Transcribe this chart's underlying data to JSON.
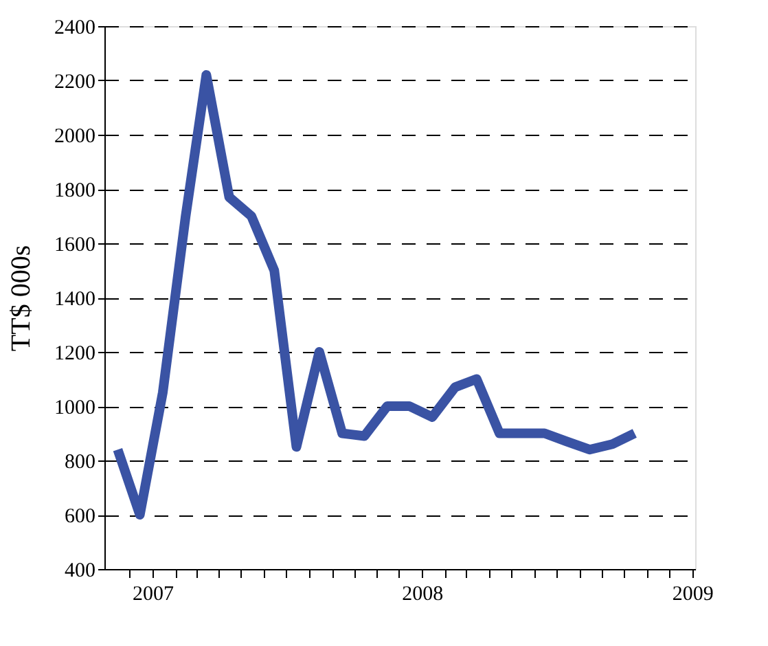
{
  "chart_data": {
    "type": "line",
    "ylabel": "TT$ 000s",
    "x": [
      "2006-11-15",
      "2006-12-15",
      "2007-01-15",
      "2007-02-15",
      "2007-03-15",
      "2007-04-15",
      "2007-05-15",
      "2007-06-15",
      "2007-07-15",
      "2007-08-15",
      "2007-09-15",
      "2007-10-15",
      "2007-11-15",
      "2007-12-15",
      "2008-01-15",
      "2008-02-15",
      "2008-03-15",
      "2008-04-15",
      "2008-05-15",
      "2008-06-15",
      "2008-07-15",
      "2008-08-15",
      "2008-09-15",
      "2008-10-15"
    ],
    "series": [
      {
        "color": "#3a53a4",
        "values": [
          840,
          600,
          1050,
          1700,
          2220,
          1770,
          1700,
          1500,
          850,
          1200,
          900,
          890,
          1000,
          1000,
          960,
          1070,
          1100,
          900,
          900,
          900,
          870,
          840,
          860,
          900
        ]
      }
    ],
    "xlim": [
      "2006-10-28",
      "2009-01-05"
    ],
    "xticks": [
      {
        "value": "2006-12-01",
        "label": null
      },
      {
        "value": "2007",
        "label": "2007"
      },
      {
        "value": "2007-02-01",
        "label": null
      },
      {
        "value": "2007-03-01",
        "label": null
      },
      {
        "value": "2007-04-01",
        "label": null
      },
      {
        "value": "2007-05-01",
        "label": null
      },
      {
        "value": "2007-06-01",
        "label": null
      },
      {
        "value": "2007-07-01",
        "label": null
      },
      {
        "value": "2007-08-01",
        "label": null
      },
      {
        "value": "2007-09-01",
        "label": null
      },
      {
        "value": "2007-10-01",
        "label": null
      },
      {
        "value": "2007-11-01",
        "label": null
      },
      {
        "value": "2007-12-01",
        "label": null
      },
      {
        "value": "2008",
        "label": "2008"
      },
      {
        "value": "2008-02-01",
        "label": null
      },
      {
        "value": "2008-03-01",
        "label": null
      },
      {
        "value": "2008-04-01",
        "label": null
      },
      {
        "value": "2008-05-01",
        "label": null
      },
      {
        "value": "2008-06-01",
        "label": null
      },
      {
        "value": "2008-07-01",
        "label": null
      },
      {
        "value": "2008-08-01",
        "label": null
      },
      {
        "value": "2008-09-01",
        "label": null
      },
      {
        "value": "2008-10-01",
        "label": null
      },
      {
        "value": "2008-11-01",
        "label": null
      },
      {
        "value": "2008-12-01",
        "label": null
      },
      {
        "value": "2009",
        "label": "2009"
      }
    ],
    "ylim": [
      400,
      2400
    ],
    "yticks": [
      400,
      600,
      800,
      1000,
      1200,
      1400,
      1600,
      1800,
      2000,
      2200,
      2400
    ],
    "grid": "y",
    "line_style": "solid",
    "marker": "none"
  }
}
